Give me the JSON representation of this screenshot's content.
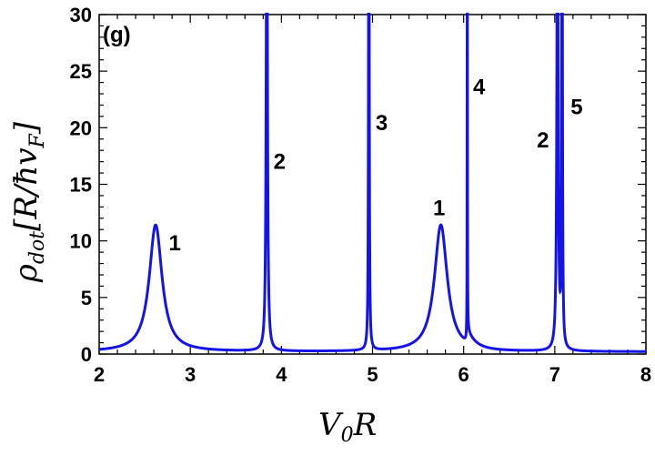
{
  "chart_data": {
    "type": "line",
    "panel_label": "(g)",
    "xlabel": "V₀R",
    "ylabel": "ρ_dot[R/ħv_F]",
    "xlim": [
      2,
      8
    ],
    "ylim": [
      0,
      30
    ],
    "x_ticks": [
      "2",
      "3",
      "4",
      "5",
      "6",
      "7",
      "8"
    ],
    "y_ticks": [
      "0",
      "5",
      "10",
      "15",
      "20",
      "25",
      "30"
    ],
    "line_color": "#1414e6",
    "baseline": 0.2,
    "resonances": [
      {
        "x0": 2.62,
        "width": 0.085,
        "height": 11.2,
        "skew": 1.0
      },
      {
        "x0": 3.84,
        "width": 0.008,
        "height": 45,
        "skew": 1.0
      },
      {
        "x0": 4.96,
        "width": 0.004,
        "height": 60,
        "skew": 1.0
      },
      {
        "x0": 5.75,
        "width": 0.085,
        "height": 11.2,
        "skew": 1.0
      },
      {
        "x0": 6.04,
        "width": 0.0012,
        "height": 80,
        "skew": 0.0,
        "fano": true
      },
      {
        "x0": 7.03,
        "width": 0.008,
        "height": 45,
        "skew": 1.0
      },
      {
        "x0": 7.08,
        "width": 0.004,
        "height": 60,
        "skew": 1.0
      }
    ],
    "annotations": [
      {
        "text": "1",
        "x": 2.83,
        "y": 9.9
      },
      {
        "text": "2",
        "x": 3.98,
        "y": 17.1
      },
      {
        "text": "3",
        "x": 5.1,
        "y": 20.5
      },
      {
        "text": "1",
        "x": 5.73,
        "y": 13.0
      },
      {
        "text": "4",
        "x": 6.17,
        "y": 23.7
      },
      {
        "text": "2",
        "x": 6.87,
        "y": 19.0
      },
      {
        "text": "5",
        "x": 7.24,
        "y": 21.9
      }
    ]
  }
}
